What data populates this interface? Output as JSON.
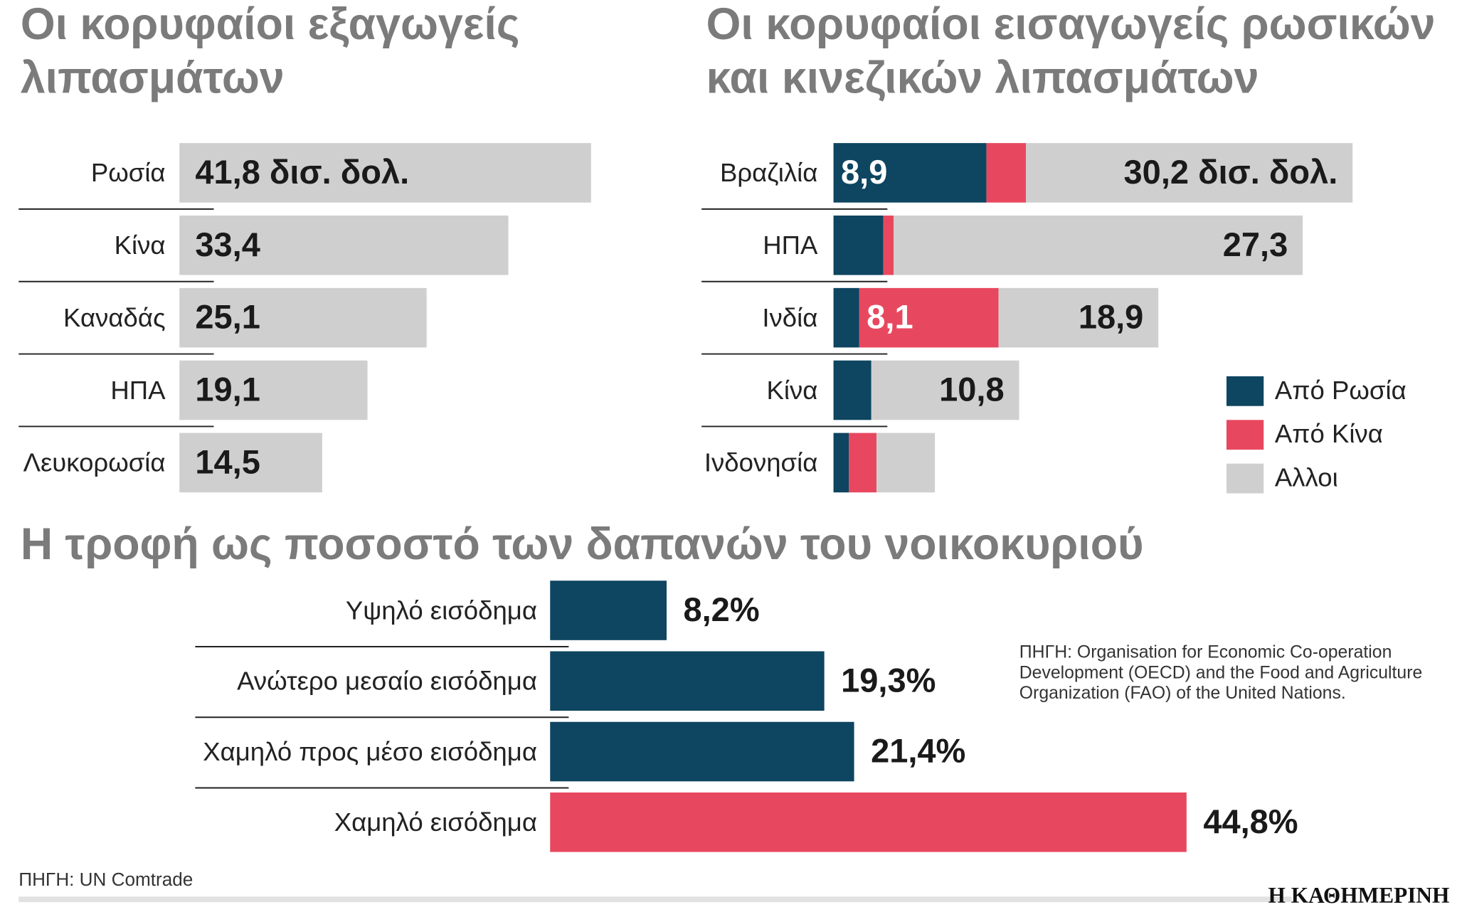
{
  "chart_data": [
    {
      "type": "bar",
      "title": [
        "Οι κορυφαίοι εξαγωγείς",
        "λιπασμάτων"
      ],
      "categories": [
        "Ρωσία",
        "Κίνα",
        "Καναδάς",
        "ΗΠΑ",
        "Λευκορωσία"
      ],
      "values": [
        41.8,
        33.4,
        25.1,
        19.1,
        14.5
      ],
      "value_labels": [
        "41,8 δισ. δολ.",
        "33,4",
        "25,1",
        "19,1",
        "14,5"
      ],
      "color": "#d0cfcf"
    },
    {
      "type": "stacked_bar",
      "title": [
        "Οι κορυφαίοι εισαγωγείς ρωσικών",
        "και κινεζικών λιπασμάτων"
      ],
      "categories": [
        "Βραζιλία",
        "ΗΠΑ",
        "Ινδία",
        "Κίνα",
        "Ινδονησία"
      ],
      "series": [
        {
          "name": "Από Ρωσία",
          "color": "#0e4560",
          "values": [
            8.9,
            2.9,
            1.5,
            2.2,
            0.9
          ],
          "value_labels": [
            "8,9",
            null,
            null,
            null,
            null
          ]
        },
        {
          "name": "Από Κίνα",
          "color": "#e8485f",
          "values": [
            2.3,
            0.6,
            8.1,
            null,
            1.6
          ],
          "value_labels": [
            null,
            null,
            "8,1",
            null,
            null
          ]
        },
        {
          "name": "Αλλοι",
          "color": "#d0cfcf",
          "values": [
            19.0,
            23.8,
            9.3,
            8.6,
            3.4
          ]
        }
      ],
      "totals": [
        30.2,
        27.3,
        18.9,
        10.8,
        null
      ],
      "total_labels": [
        "30,2 δισ. δολ.",
        "27,3",
        "18,9",
        "10,8",
        null
      ]
    },
    {
      "type": "bar",
      "title": [
        "Η τροφή ως ποσοστό των δαπανών του νοικοκυριού"
      ],
      "categories": [
        "Υψηλό εισόδημα",
        "Ανώτερο μεσαίο εισόδημα",
        "Χαμηλό προς μέσο εισόδημα",
        "Χαμηλό εισόδημα"
      ],
      "values": [
        8.2,
        19.3,
        21.4,
        44.8
      ],
      "value_labels": [
        "8,2%",
        "19,3%",
        "21,4%",
        "44,8%"
      ],
      "colors": [
        "#0e4560",
        "#0e4560",
        "#0e4560",
        "#e8485f"
      ],
      "note": [
        "ΠΗΓΗ: Organisation for Economic Co-operation",
        "Development (OECD) and the Food and Agriculture",
        "Organization (FAO) of the United Nations."
      ]
    }
  ],
  "source": "ΠΗΓΗ: UN Comtrade",
  "brand": "Η ΚΑΘΗΜΕΡΙΝΗ"
}
